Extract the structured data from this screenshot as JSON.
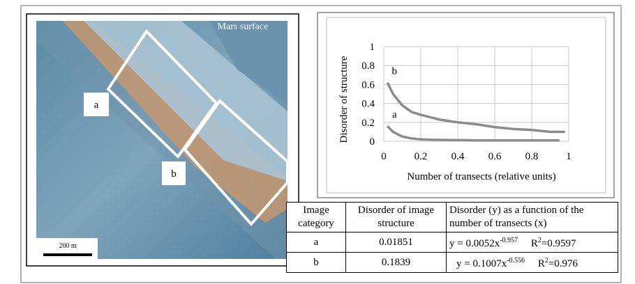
{
  "image": {
    "caption": "Mars surface",
    "labels": [
      "a",
      "b"
    ],
    "scale": "200 m"
  },
  "chart_data": {
    "type": "line",
    "ylabel": "Disorder of structure",
    "xlabel": "Number of transects (relative units)",
    "xlim": [
      0,
      1
    ],
    "ylim": [
      0,
      1
    ],
    "xticks": [
      0,
      0.2,
      0.4,
      0.6,
      0.8,
      1
    ],
    "yticks": [
      0,
      0.2,
      0.4,
      0.6,
      0.8,
      1
    ],
    "grid": true,
    "series": [
      {
        "name": "b",
        "color": "#8c8c8c",
        "x": [
          0.02,
          0.05,
          0.1,
          0.15,
          0.2,
          0.3,
          0.4,
          0.5,
          0.6,
          0.7,
          0.8,
          0.9,
          0.98
        ],
        "values": [
          0.62,
          0.5,
          0.38,
          0.31,
          0.28,
          0.23,
          0.2,
          0.18,
          0.15,
          0.13,
          0.12,
          0.1,
          0.1
        ]
      },
      {
        "name": "a",
        "color": "#8c8c8c",
        "x": [
          0.02,
          0.05,
          0.1,
          0.15,
          0.2,
          0.3,
          0.5,
          0.7,
          0.95
        ],
        "values": [
          0.16,
          0.1,
          0.05,
          0.03,
          0.02,
          0.015,
          0.01,
          0.01,
          0.01
        ]
      }
    ]
  },
  "table": {
    "header": [
      "Image category",
      "Disorder of image structure",
      "Disorder (y) as a function of the number of transects (x)"
    ],
    "rows": [
      {
        "category": "a",
        "disorder": "0.01851",
        "eq": "y = 0.0052x",
        "exp": "-0.957",
        "r": "R",
        "rsup": "2",
        "rval": "=0.9597"
      },
      {
        "category": "b",
        "disorder": "0.1839",
        "eq": "y = 0.1007x",
        "exp": "-0.556",
        "r": "R",
        "rsup": "2",
        "rval": "=0.976"
      }
    ]
  }
}
